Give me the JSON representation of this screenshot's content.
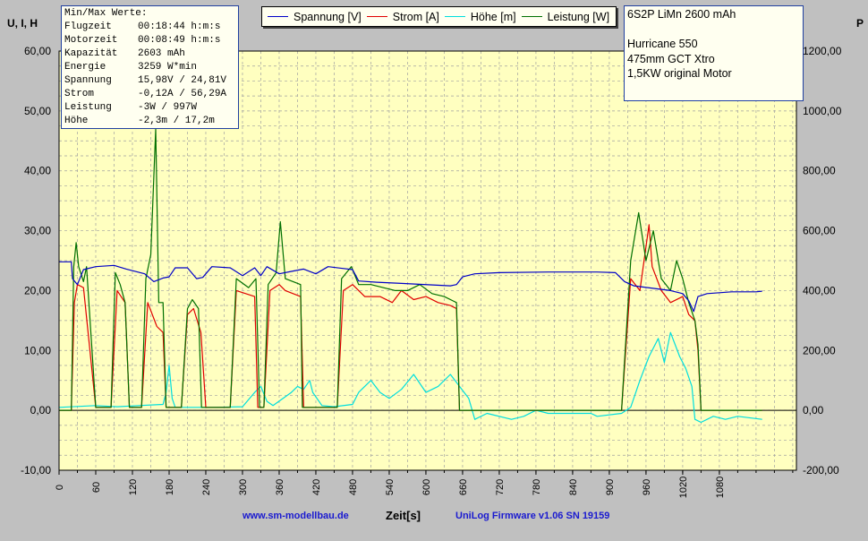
{
  "chart_data": {
    "type": "line",
    "left_axis_title": "U, I, H",
    "right_axis_title": "P",
    "xlabel": "Zeit[s]",
    "xlim": [
      0,
      1206
    ],
    "x_ticks": [
      "0",
      "60",
      "120",
      "180",
      "240",
      "300",
      "360",
      "420",
      "480",
      "540",
      "600",
      "660",
      "720",
      "780",
      "840",
      "900",
      "960",
      "1020",
      "1080"
    ],
    "ylim_left": [
      -10,
      60
    ],
    "y_ticks_left": [
      "-10,00",
      "0,00",
      "10,00",
      "20,00",
      "30,00",
      "40,00",
      "50,00",
      "60,00"
    ],
    "ylim_right": [
      -200,
      1200
    ],
    "y_ticks_right": [
      "-200,00",
      "0,00",
      "200,00",
      "400,00",
      "600,00",
      "800,00",
      "1000,00",
      "1200,00"
    ],
    "grid": true,
    "legend_placement": "top",
    "series": [
      {
        "name": "Spannung [V]",
        "color": "#0000c8",
        "axis": "left",
        "points": [
          [
            0,
            24.8
          ],
          [
            20,
            24.8
          ],
          [
            22,
            22
          ],
          [
            30,
            21
          ],
          [
            40,
            23.5
          ],
          [
            60,
            24
          ],
          [
            90,
            24.2
          ],
          [
            110,
            23.6
          ],
          [
            140,
            22.8
          ],
          [
            155,
            21.5
          ],
          [
            170,
            22.1
          ],
          [
            180,
            22.3
          ],
          [
            190,
            23.8
          ],
          [
            210,
            23.8
          ],
          [
            225,
            22
          ],
          [
            235,
            22.2
          ],
          [
            250,
            24
          ],
          [
            280,
            23.8
          ],
          [
            300,
            22.5
          ],
          [
            320,
            23.8
          ],
          [
            330,
            22.5
          ],
          [
            340,
            24
          ],
          [
            360,
            22.8
          ],
          [
            380,
            23.2
          ],
          [
            400,
            23.6
          ],
          [
            420,
            22.8
          ],
          [
            440,
            24
          ],
          [
            480,
            23.5
          ],
          [
            490,
            21.6
          ],
          [
            520,
            21.4
          ],
          [
            560,
            21.2
          ],
          [
            640,
            20.8
          ],
          [
            650,
            21
          ],
          [
            660,
            22.3
          ],
          [
            680,
            22.8
          ],
          [
            720,
            23
          ],
          [
            800,
            23.1
          ],
          [
            880,
            23.1
          ],
          [
            910,
            23
          ],
          [
            925,
            21.5
          ],
          [
            940,
            20.8
          ],
          [
            1000,
            20
          ],
          [
            1020,
            19.5
          ],
          [
            1030,
            18.3
          ],
          [
            1038,
            16.5
          ],
          [
            1045,
            19
          ],
          [
            1060,
            19.5
          ],
          [
            1100,
            19.8
          ],
          [
            1140,
            19.8
          ],
          [
            1150,
            19.9
          ]
        ]
      },
      {
        "name": "Strom [A]",
        "color": "#e00000",
        "axis": "left",
        "points": [
          [
            0,
            0
          ],
          [
            20,
            0
          ],
          [
            25,
            18
          ],
          [
            30,
            21
          ],
          [
            40,
            20.5
          ],
          [
            60,
            0.5
          ],
          [
            85,
            0.5
          ],
          [
            95,
            20
          ],
          [
            108,
            18
          ],
          [
            115,
            0.5
          ],
          [
            135,
            0.5
          ],
          [
            145,
            18
          ],
          [
            160,
            14
          ],
          [
            170,
            13
          ],
          [
            175,
            0.5
          ],
          [
            200,
            0.5
          ],
          [
            210,
            16
          ],
          [
            220,
            17
          ],
          [
            232,
            13
          ],
          [
            240,
            0.5
          ],
          [
            280,
            0.5
          ],
          [
            290,
            20
          ],
          [
            320,
            19
          ],
          [
            325,
            0.5
          ],
          [
            335,
            0.5
          ],
          [
            345,
            20
          ],
          [
            360,
            21
          ],
          [
            370,
            20
          ],
          [
            395,
            19
          ],
          [
            400,
            0.5
          ],
          [
            455,
            0.5
          ],
          [
            465,
            20
          ],
          [
            480,
            21
          ],
          [
            500,
            19
          ],
          [
            525,
            19
          ],
          [
            545,
            18
          ],
          [
            560,
            20
          ],
          [
            580,
            18.5
          ],
          [
            600,
            19
          ],
          [
            620,
            18
          ],
          [
            640,
            17.5
          ],
          [
            650,
            17
          ],
          [
            655,
            0
          ],
          [
            920,
            0
          ],
          [
            935,
            22
          ],
          [
            950,
            20
          ],
          [
            965,
            31
          ],
          [
            970,
            24
          ],
          [
            985,
            20
          ],
          [
            1000,
            18
          ],
          [
            1020,
            19
          ],
          [
            1030,
            16
          ],
          [
            1040,
            15
          ],
          [
            1045,
            10
          ],
          [
            1050,
            0
          ],
          [
            1150,
            0
          ]
        ]
      },
      {
        "name": "Höhe [m]",
        "color": "#00dede",
        "axis": "left",
        "points": [
          [
            0,
            0.5
          ],
          [
            60,
            0.8
          ],
          [
            95,
            0.6
          ],
          [
            130,
            0.8
          ],
          [
            170,
            1
          ],
          [
            175,
            3
          ],
          [
            180,
            7.5
          ],
          [
            185,
            2
          ],
          [
            190,
            0.5
          ],
          [
            250,
            0.5
          ],
          [
            300,
            0.6
          ],
          [
            320,
            3
          ],
          [
            330,
            4
          ],
          [
            340,
            1.5
          ],
          [
            350,
            0.8
          ],
          [
            380,
            3
          ],
          [
            390,
            4
          ],
          [
            400,
            3.5
          ],
          [
            410,
            5
          ],
          [
            415,
            3
          ],
          [
            430,
            0.8
          ],
          [
            450,
            0.6
          ],
          [
            480,
            1
          ],
          [
            490,
            3
          ],
          [
            510,
            5
          ],
          [
            525,
            3
          ],
          [
            540,
            2
          ],
          [
            560,
            3.5
          ],
          [
            580,
            6
          ],
          [
            600,
            3
          ],
          [
            620,
            4
          ],
          [
            640,
            6
          ],
          [
            655,
            4
          ],
          [
            670,
            2
          ],
          [
            680,
            -1.5
          ],
          [
            700,
            -0.5
          ],
          [
            740,
            -1.5
          ],
          [
            760,
            -1
          ],
          [
            780,
            0
          ],
          [
            800,
            -0.5
          ],
          [
            840,
            -0.5
          ],
          [
            870,
            -0.5
          ],
          [
            880,
            -1
          ],
          [
            920,
            -0.5
          ],
          [
            935,
            0.5
          ],
          [
            950,
            5
          ],
          [
            965,
            9
          ],
          [
            980,
            12
          ],
          [
            990,
            8
          ],
          [
            1000,
            13
          ],
          [
            1015,
            9
          ],
          [
            1025,
            7
          ],
          [
            1035,
            4
          ],
          [
            1040,
            -1.5
          ],
          [
            1050,
            -2
          ],
          [
            1070,
            -1
          ],
          [
            1090,
            -1.5
          ],
          [
            1110,
            -1
          ],
          [
            1150,
            -1.5
          ]
        ]
      },
      {
        "name": "Leistung [W]",
        "color": "#007000",
        "axis": "left",
        "points": [
          [
            0,
            0
          ],
          [
            20,
            0
          ],
          [
            24,
            24
          ],
          [
            28,
            28
          ],
          [
            32,
            24
          ],
          [
            40,
            21.5
          ],
          [
            45,
            24
          ],
          [
            60,
            0.5
          ],
          [
            85,
            0.5
          ],
          [
            92,
            23
          ],
          [
            100,
            21
          ],
          [
            108,
            18
          ],
          [
            115,
            0.5
          ],
          [
            135,
            0.5
          ],
          [
            142,
            22
          ],
          [
            150,
            26
          ],
          [
            158,
            47
          ],
          [
            163,
            18
          ],
          [
            170,
            18
          ],
          [
            175,
            0.5
          ],
          [
            200,
            0.5
          ],
          [
            210,
            17
          ],
          [
            218,
            18.5
          ],
          [
            228,
            17
          ],
          [
            233,
            0.5
          ],
          [
            280,
            0.5
          ],
          [
            290,
            22
          ],
          [
            310,
            20.5
          ],
          [
            322,
            22
          ],
          [
            328,
            0.5
          ],
          [
            335,
            0.5
          ],
          [
            342,
            21
          ],
          [
            355,
            23
          ],
          [
            362,
            31.5
          ],
          [
            370,
            22
          ],
          [
            395,
            21
          ],
          [
            398,
            0.5
          ],
          [
            455,
            0.5
          ],
          [
            462,
            22
          ],
          [
            478,
            24
          ],
          [
            490,
            21
          ],
          [
            510,
            21
          ],
          [
            530,
            20.5
          ],
          [
            550,
            20
          ],
          [
            570,
            20
          ],
          [
            590,
            21
          ],
          [
            610,
            19.5
          ],
          [
            630,
            19
          ],
          [
            650,
            18
          ],
          [
            655,
            0
          ],
          [
            920,
            0
          ],
          [
            935,
            25
          ],
          [
            948,
            33
          ],
          [
            960,
            25
          ],
          [
            972,
            30
          ],
          [
            985,
            22
          ],
          [
            1000,
            20
          ],
          [
            1010,
            25
          ],
          [
            1020,
            22
          ],
          [
            1030,
            18
          ],
          [
            1040,
            15
          ],
          [
            1045,
            11
          ],
          [
            1050,
            0
          ],
          [
            1150,
            0
          ]
        ]
      }
    ]
  },
  "minmax_box": {
    "title": "Min/Max Werte:",
    "rows": [
      {
        "label": "Flugzeit",
        "value": "00:18:44 h:m:s"
      },
      {
        "label": "Motorzeit",
        "value": "00:08:49 h:m:s"
      },
      {
        "label": "Kapazität",
        "value": "2603 mAh"
      },
      {
        "label": "Energie",
        "value": "3259 W*min"
      },
      {
        "label": "Spannung",
        "value": "15,98V / 24,81V"
      },
      {
        "label": "Strom",
        "value": "-0,12A / 56,29A"
      },
      {
        "label": "Leistung",
        "value": "-3W / 997W"
      },
      {
        "label": "Höhe",
        "value": "-2,3m / 17,2m"
      }
    ]
  },
  "notes_box": {
    "lines": [
      "6S2P LiMn 2600 mAh",
      "",
      "Hurricane 550",
      "475mm GCT Xtro",
      "1,5KW original Motor"
    ]
  },
  "footer": {
    "website": "www.sm-modellbau.de",
    "firmware": "UniLog Firmware v1.06 SN 19159"
  },
  "colors": {
    "plot_bg": "#ffffc0",
    "window_bg": "#c0c0c0",
    "grid": "#a0a0a0"
  }
}
